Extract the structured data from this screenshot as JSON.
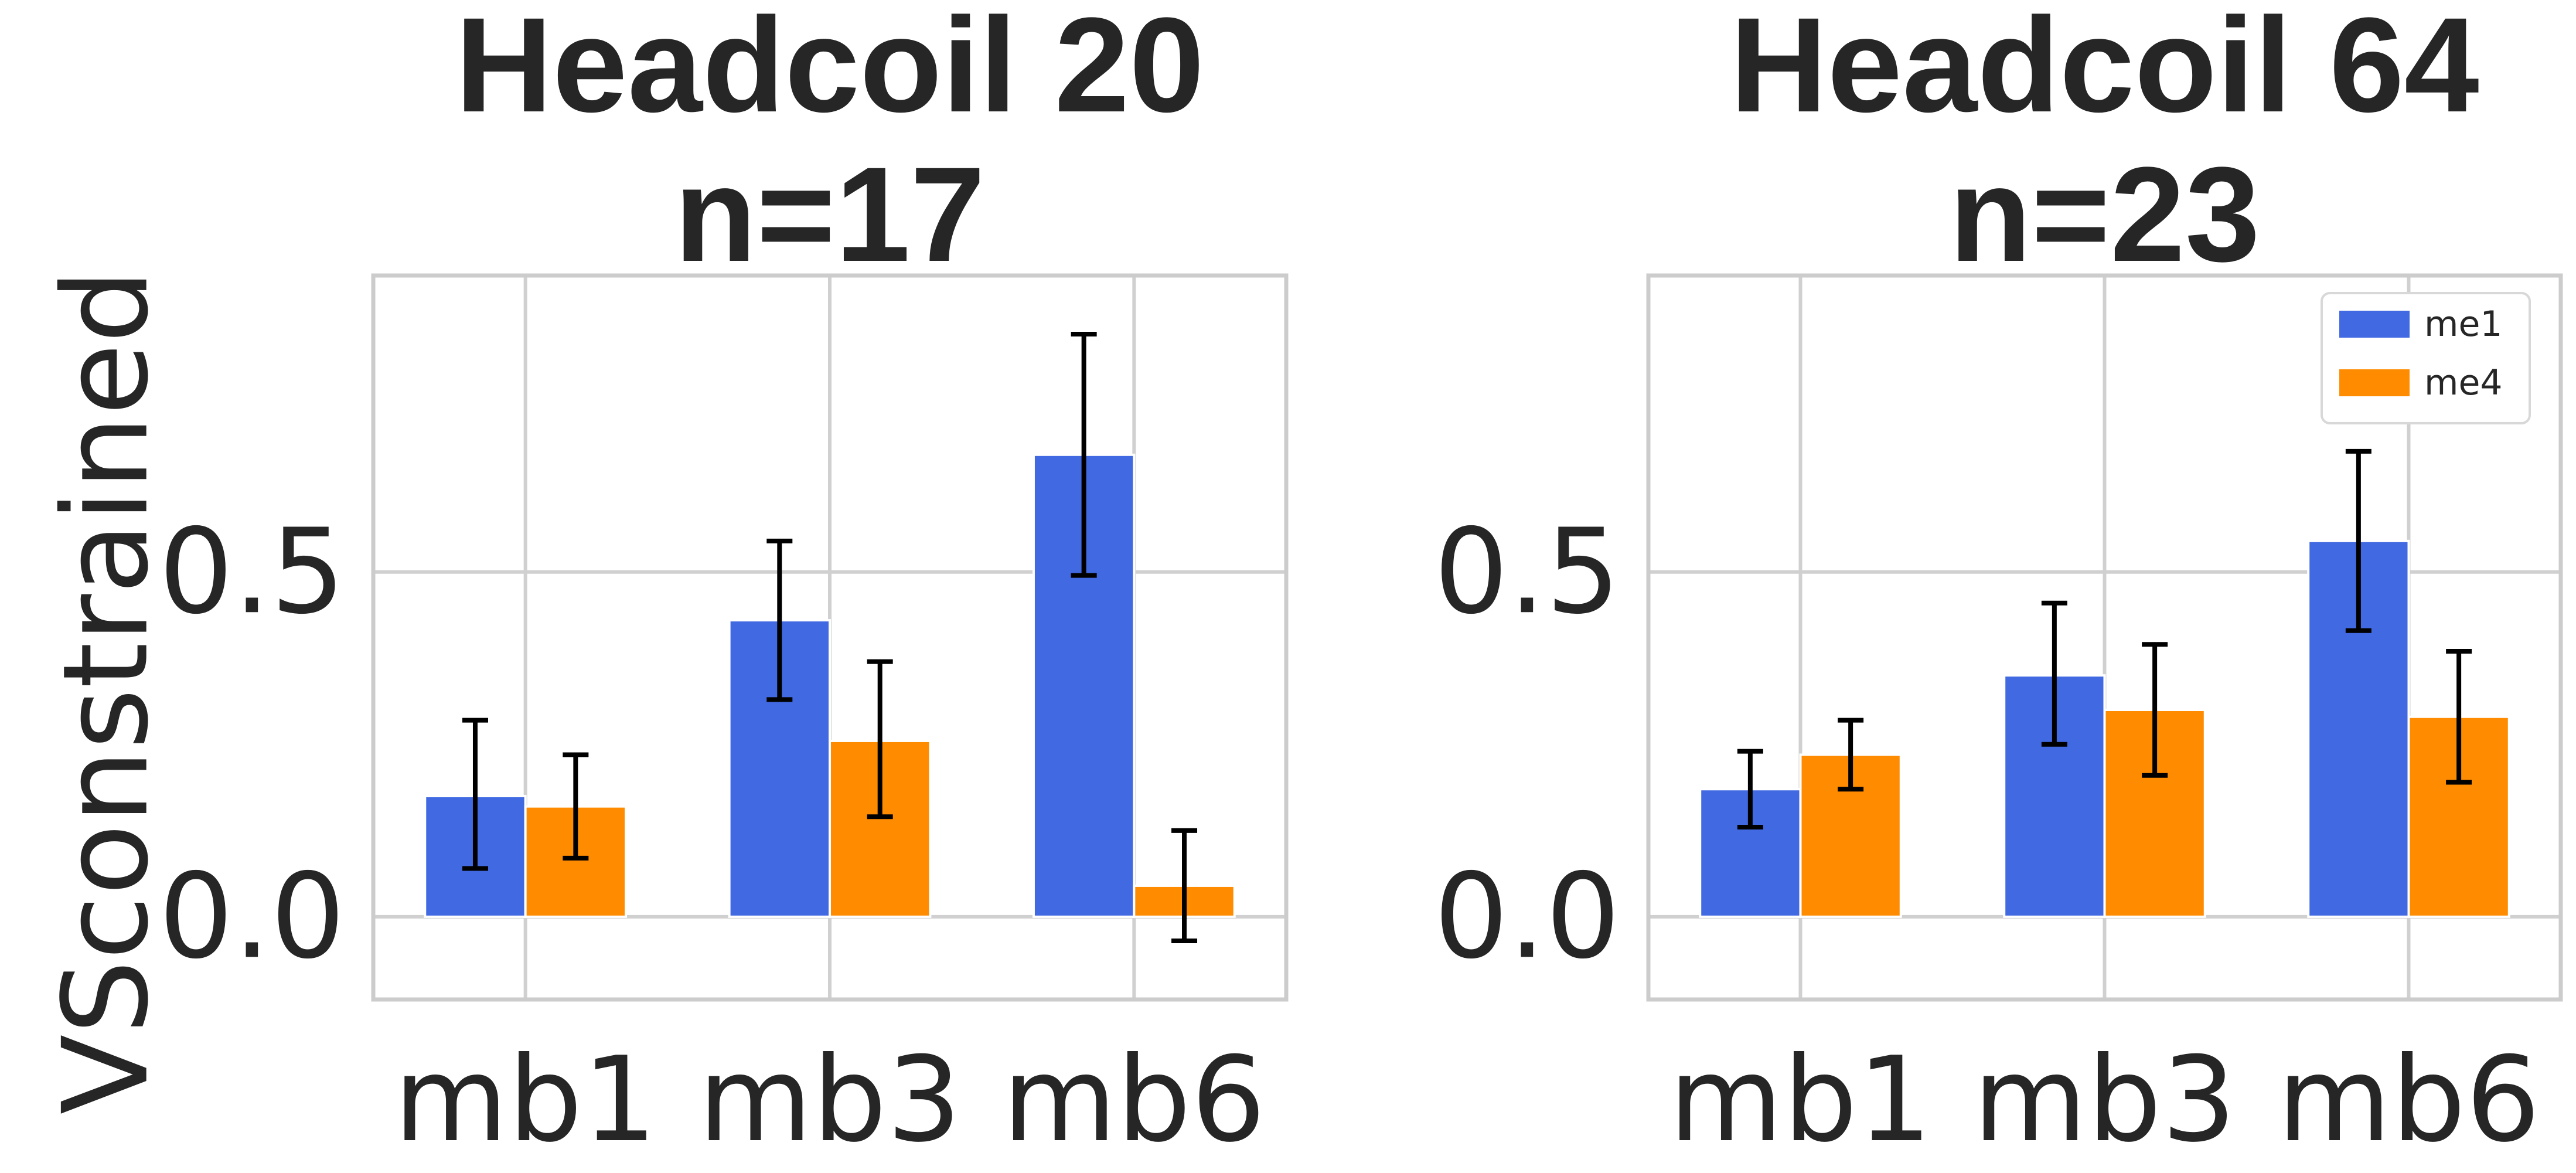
{
  "colors": {
    "me1": "#4169e1",
    "me4": "#ff8c00"
  },
  "ylabel": "VSconstrained",
  "chart_data": [
    {
      "type": "bar",
      "title": [
        "Headcoil 20",
        "n=17"
      ],
      "categories": [
        "mb1",
        "mb3",
        "mb6"
      ],
      "ylim": [
        -0.12,
        0.93
      ],
      "yticks": [
        "0.0",
        "0.5"
      ],
      "ytick_values": [
        0.0,
        0.5
      ],
      "grid": true,
      "legend": null,
      "series": [
        {
          "name": "me1",
          "values": [
            0.175,
            0.43,
            0.67
          ],
          "err_low": [
            0.07,
            0.315,
            0.495
          ],
          "err_high": [
            0.285,
            0.545,
            0.845
          ]
        },
        {
          "name": "me4",
          "values": [
            0.16,
            0.255,
            0.045
          ],
          "err_low": [
            0.085,
            0.145,
            -0.035
          ],
          "err_high": [
            0.235,
            0.37,
            0.125
          ]
        }
      ]
    },
    {
      "type": "bar",
      "title": [
        "Headcoil 64",
        "n=23"
      ],
      "categories": [
        "mb1",
        "mb3",
        "mb6"
      ],
      "ylim": [
        -0.12,
        0.93
      ],
      "yticks": [
        "0.0",
        "0.5"
      ],
      "ytick_values": [
        0.0,
        0.5
      ],
      "grid": true,
      "legend": "top-right",
      "series": [
        {
          "name": "me1",
          "values": [
            0.185,
            0.35,
            0.545
          ],
          "err_low": [
            0.13,
            0.25,
            0.415
          ],
          "err_high": [
            0.24,
            0.455,
            0.675
          ]
        },
        {
          "name": "me4",
          "values": [
            0.235,
            0.3,
            0.29
          ],
          "err_low": [
            0.185,
            0.205,
            0.195
          ],
          "err_high": [
            0.285,
            0.395,
            0.385
          ]
        }
      ]
    }
  ]
}
